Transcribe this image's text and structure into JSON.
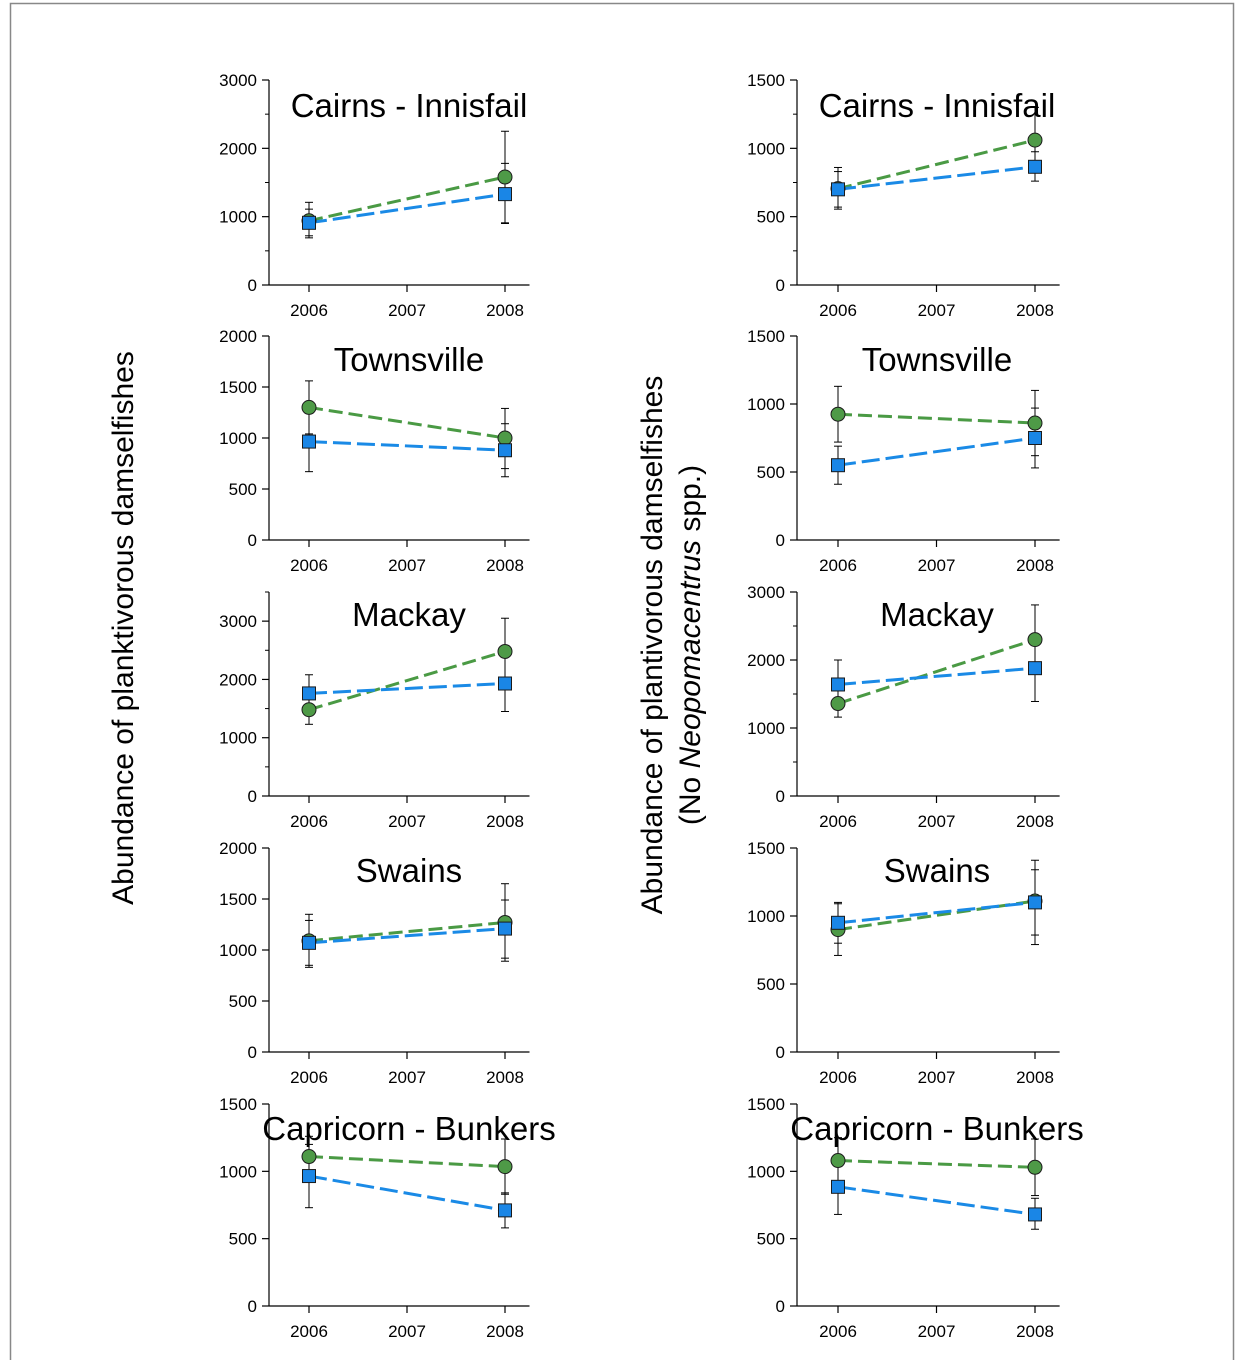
{
  "figure": {
    "left_ylabel": "Abundance of planktivorous damselfishes",
    "right_ylabel_line1_pre": "Abundance of plantivorous damselfishes",
    "right_ylabel_line2_pre": "(No ",
    "right_ylabel_line2_italic": "Neopomacentrus",
    "right_ylabel_line2_post": " spp.)"
  },
  "colors": {
    "green_line": "#4a9a44",
    "green_marker": "#4e9a47",
    "blue_line": "#1a8ae6",
    "blue_marker": "#1a86e6",
    "axis": "#000000",
    "frame": "#888888"
  },
  "chart_data": [
    {
      "type": "line",
      "column": "left",
      "row": 0,
      "title": "Cairns - Innisfail",
      "x": [
        2006,
        2008
      ],
      "xlim": [
        2005.75,
        2008.25
      ],
      "xticks": [
        2006,
        2007,
        2008
      ],
      "ylim": [
        0,
        3000
      ],
      "yticks": [
        0,
        1000,
        2000,
        3000
      ],
      "yminor": [
        500,
        1500,
        2500
      ],
      "series": [
        {
          "marker": "circle",
          "color_key": "green",
          "values": [
            940,
            1580
          ],
          "err_low": [
            690,
            910
          ],
          "err_high": [
            1210,
            2250
          ]
        },
        {
          "marker": "square",
          "color_key": "blue",
          "values": [
            910,
            1330
          ],
          "err_low": [
            720,
            900
          ],
          "err_high": [
            1110,
            1780
          ]
        }
      ]
    },
    {
      "type": "line",
      "column": "right",
      "row": 0,
      "title": "Cairns - Innisfail",
      "x": [
        2006,
        2008
      ],
      "xlim": [
        2005.75,
        2008.25
      ],
      "xticks": [
        2006,
        2007,
        2008
      ],
      "ylim": [
        0,
        1500
      ],
      "yticks": [
        0,
        500,
        1000,
        1500
      ],
      "yminor": [
        250,
        750,
        1250
      ],
      "series": [
        {
          "marker": "circle",
          "color_key": "green",
          "values": [
            705,
            1060
          ],
          "err_low": [
            555,
            820
          ],
          "err_high": [
            860,
            1300
          ]
        },
        {
          "marker": "square",
          "color_key": "blue",
          "values": [
            700,
            865
          ],
          "err_low": [
            570,
            760
          ],
          "err_high": [
            830,
            975
          ]
        }
      ]
    },
    {
      "type": "line",
      "column": "left",
      "row": 1,
      "title": "Townsville",
      "x": [
        2006,
        2008
      ],
      "xlim": [
        2005.75,
        2008.25
      ],
      "xticks": [
        2006,
        2007,
        2008
      ],
      "ylim": [
        0,
        2000
      ],
      "yticks": [
        0,
        500,
        1000,
        1500,
        2000
      ],
      "yminor": [],
      "series": [
        {
          "marker": "circle",
          "color_key": "green",
          "values": [
            1300,
            1000
          ],
          "err_low": [
            1040,
            700
          ],
          "err_high": [
            1560,
            1290
          ]
        },
        {
          "marker": "square",
          "color_key": "blue",
          "values": [
            965,
            880
          ],
          "err_low": [
            670,
            620
          ],
          "err_high": [
            1260,
            1140
          ]
        }
      ]
    },
    {
      "type": "line",
      "column": "right",
      "row": 1,
      "title": "Townsville",
      "x": [
        2006,
        2008
      ],
      "xlim": [
        2005.75,
        2008.25
      ],
      "xticks": [
        2006,
        2007,
        2008
      ],
      "ylim": [
        0,
        1500
      ],
      "yticks": [
        0,
        500,
        1000,
        1500
      ],
      "yminor": [],
      "series": [
        {
          "marker": "circle",
          "color_key": "green",
          "values": [
            925,
            860
          ],
          "err_low": [
            720,
            620
          ],
          "err_high": [
            1130,
            1100
          ]
        },
        {
          "marker": "square",
          "color_key": "blue",
          "values": [
            550,
            750
          ],
          "err_low": [
            410,
            530
          ],
          "err_high": [
            690,
            970
          ]
        }
      ]
    },
    {
      "type": "line",
      "column": "left",
      "row": 2,
      "title": "Mackay",
      "x": [
        2006,
        2008
      ],
      "xlim": [
        2005.75,
        2008.25
      ],
      "xticks": [
        2006,
        2007,
        2008
      ],
      "ylim": [
        0,
        3500
      ],
      "yticks": [
        0,
        1000,
        2000,
        3000
      ],
      "yminor": [
        500,
        1500,
        2500,
        3500
      ],
      "series": [
        {
          "marker": "circle",
          "color_key": "green",
          "values": [
            1480,
            2480
          ],
          "err_low": [
            1230,
            1900
          ],
          "err_high": [
            1730,
            3050
          ]
        },
        {
          "marker": "square",
          "color_key": "blue",
          "values": [
            1760,
            1930
          ],
          "err_low": [
            1430,
            1450
          ],
          "err_high": [
            2080,
            2420
          ]
        }
      ]
    },
    {
      "type": "line",
      "column": "right",
      "row": 2,
      "title": "Mackay",
      "x": [
        2006,
        2008
      ],
      "xlim": [
        2005.75,
        2008.25
      ],
      "xticks": [
        2006,
        2007,
        2008
      ],
      "ylim": [
        0,
        3000
      ],
      "yticks": [
        0,
        1000,
        2000,
        3000
      ],
      "yminor": [
        500,
        1500,
        2500
      ],
      "series": [
        {
          "marker": "circle",
          "color_key": "green",
          "values": [
            1360,
            2300
          ],
          "err_low": [
            1160,
            1790
          ],
          "err_high": [
            1560,
            2810
          ]
        },
        {
          "marker": "square",
          "color_key": "blue",
          "values": [
            1640,
            1880
          ],
          "err_low": [
            1280,
            1390
          ],
          "err_high": [
            2000,
            2370
          ]
        }
      ]
    },
    {
      "type": "line",
      "column": "left",
      "row": 3,
      "title": "Swains",
      "x": [
        2006,
        2008
      ],
      "xlim": [
        2005.75,
        2008.25
      ],
      "xticks": [
        2006,
        2007,
        2008
      ],
      "ylim": [
        0,
        2000
      ],
      "yticks": [
        0,
        500,
        1000,
        1500,
        2000
      ],
      "yminor": [],
      "series": [
        {
          "marker": "circle",
          "color_key": "green",
          "values": [
            1090,
            1270
          ],
          "err_low": [
            830,
            890
          ],
          "err_high": [
            1350,
            1650
          ]
        },
        {
          "marker": "square",
          "color_key": "blue",
          "values": [
            1070,
            1210
          ],
          "err_low": [
            850,
            920
          ],
          "err_high": [
            1290,
            1490
          ]
        }
      ]
    },
    {
      "type": "line",
      "column": "right",
      "row": 3,
      "title": "Swains",
      "x": [
        2006,
        2008
      ],
      "xlim": [
        2005.75,
        2008.25
      ],
      "xticks": [
        2006,
        2007,
        2008
      ],
      "ylim": [
        0,
        1500
      ],
      "yticks": [
        0,
        500,
        1000,
        1500
      ],
      "yminor": [],
      "series": [
        {
          "marker": "circle",
          "color_key": "green",
          "values": [
            900,
            1110
          ],
          "err_low": [
            710,
            790
          ],
          "err_high": [
            1090,
            1410
          ]
        },
        {
          "marker": "square",
          "color_key": "blue",
          "values": [
            950,
            1100
          ],
          "err_low": [
            800,
            860
          ],
          "err_high": [
            1100,
            1340
          ]
        }
      ]
    },
    {
      "type": "line",
      "column": "left",
      "row": 4,
      "title": "Capricorn - Bunkers",
      "x": [
        2006,
        2008
      ],
      "xlim": [
        2005.75,
        2008.25
      ],
      "xticks": [
        2006,
        2007,
        2008
      ],
      "ylim": [
        0,
        1500
      ],
      "yticks": [
        0,
        500,
        1000,
        1500
      ],
      "yminor": [],
      "series": [
        {
          "marker": "circle",
          "color_key": "green",
          "values": [
            1110,
            1035
          ],
          "err_low": [
            960,
            830
          ],
          "err_high": [
            1260,
            1240
          ]
        },
        {
          "marker": "square",
          "color_key": "blue",
          "values": [
            965,
            710
          ],
          "err_low": [
            730,
            580
          ],
          "err_high": [
            1200,
            840
          ]
        }
      ]
    },
    {
      "type": "line",
      "column": "right",
      "row": 4,
      "title": "Capricorn - Bunkers",
      "x": [
        2006,
        2008
      ],
      "xlim": [
        2005.75,
        2008.25
      ],
      "xticks": [
        2006,
        2007,
        2008
      ],
      "ylim": [
        0,
        1500
      ],
      "yticks": [
        0,
        500,
        1000,
        1500
      ],
      "yminor": [],
      "series": [
        {
          "marker": "circle",
          "color_key": "green",
          "values": [
            1080,
            1030
          ],
          "err_low": [
            910,
            820
          ],
          "err_high": [
            1250,
            1240
          ]
        },
        {
          "marker": "square",
          "color_key": "blue",
          "values": [
            885,
            680
          ],
          "err_low": [
            680,
            570
          ],
          "err_high": [
            1090,
            800
          ]
        }
      ]
    }
  ]
}
